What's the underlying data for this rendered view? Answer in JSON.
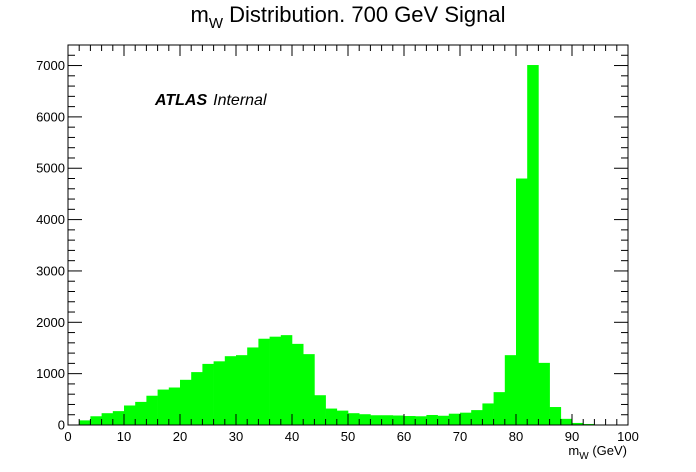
{
  "chart_data": {
    "type": "bar",
    "title": {
      "main": "m",
      "sub": "W",
      "rest": " Distribution. 700 GeV Signal"
    },
    "xlabel": {
      "main": "m",
      "sub": "W",
      "rest": " (GeV)"
    },
    "ylabel": "",
    "xlim": [
      0,
      100
    ],
    "ylim": [
      0,
      7400
    ],
    "x_ticks": [
      0,
      10,
      20,
      30,
      40,
      50,
      60,
      70,
      80,
      90,
      100
    ],
    "y_ticks": [
      0,
      1000,
      2000,
      3000,
      4000,
      5000,
      6000,
      7000
    ],
    "bin_width": 2,
    "bin_edges_start": 0,
    "values": [
      5,
      90,
      170,
      230,
      270,
      380,
      450,
      570,
      690,
      730,
      880,
      1030,
      1190,
      1240,
      1340,
      1360,
      1510,
      1680,
      1720,
      1750,
      1580,
      1380,
      580,
      320,
      280,
      230,
      210,
      190,
      190,
      185,
      175,
      170,
      195,
      180,
      220,
      240,
      290,
      420,
      640,
      1360,
      4800,
      7010,
      1210,
      350,
      120,
      40,
      20,
      10,
      5,
      2
    ],
    "fill_color": "#00ff00",
    "grid": false,
    "legend": "none",
    "annotation": {
      "bold": "ATLAS",
      "normal": "Internal"
    }
  }
}
